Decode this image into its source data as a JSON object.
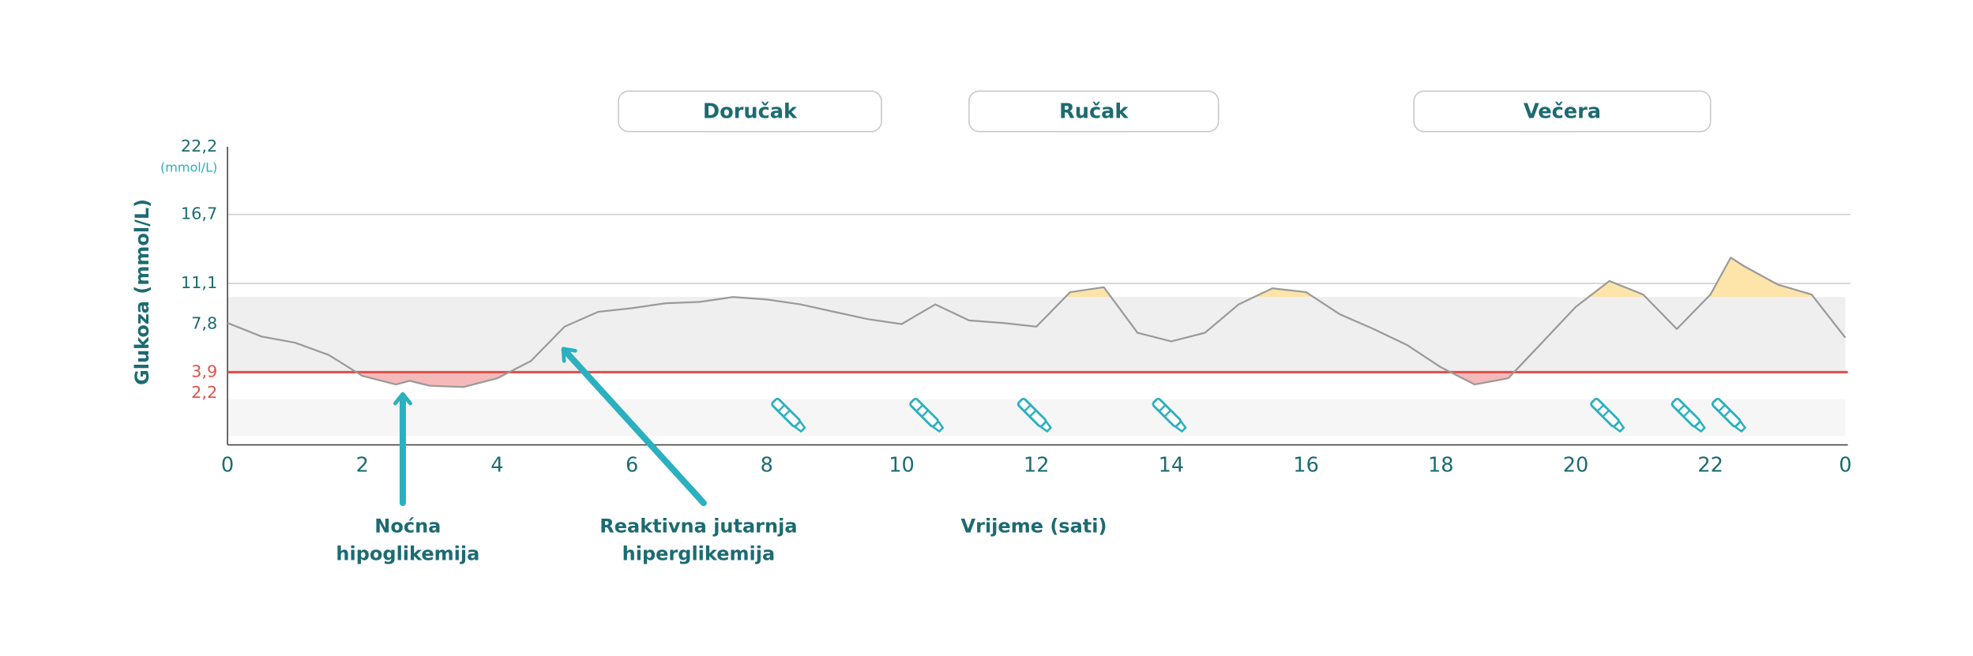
{
  "chart_data": {
    "type": "line",
    "y_label": "Glukoza (mmol/L)",
    "y_unit": "(mmol/L)",
    "x_label": "Vrijeme (sati)",
    "xlim": [
      0,
      24
    ],
    "xticks": [
      0,
      2,
      4,
      6,
      8,
      10,
      12,
      14,
      16,
      18,
      20,
      22,
      {
        "value": 24,
        "label": "0"
      }
    ],
    "ylim": [
      -2,
      22.2
    ],
    "yticks": [
      {
        "value": 22.2,
        "label": "22,2"
      },
      {
        "value": 16.7,
        "label": "16,7"
      },
      {
        "value": 11.1,
        "label": "11,1"
      },
      {
        "value": 7.8,
        "label": "7,8"
      },
      {
        "value": 3.9,
        "label": "3,9"
      },
      {
        "value": 2.2,
        "label": "2,2"
      }
    ],
    "grid_lines": [
      16.7,
      11.1
    ],
    "target_range": [
      3.9,
      10
    ],
    "colors": {
      "line": "#9a9a9a",
      "target_band": "#efefef",
      "low": "#e0524f",
      "low_fill": "#f6b9b9",
      "high_fill": "#fde4a9",
      "text": "#1d6b72",
      "accent": "#2bb0c0"
    },
    "x": [
      0,
      0.5,
      1,
      1.5,
      2,
      2.5,
      2.7,
      3,
      3.5,
      4,
      4.5,
      5,
      5.5,
      6,
      6.5,
      7,
      7.5,
      8,
      8.5,
      9,
      9.5,
      10,
      10.5,
      11,
      11.5,
      12,
      12.5,
      13,
      13.5,
      14,
      14.5,
      15,
      15.5,
      16,
      16.5,
      17,
      17.5,
      18,
      18.5,
      19,
      19.5,
      20,
      20.5,
      21,
      21.5,
      22,
      22.3,
      22.5,
      23,
      23.5,
      24
    ],
    "series": [
      {
        "values": [
          7.9,
          6.8,
          6.3,
          5.3,
          3.6,
          2.9,
          3.2,
          2.8,
          2.7,
          3.4,
          4.8,
          7.6,
          8.8,
          9.1,
          9.5,
          9.6,
          10,
          9.8,
          9.4,
          8.8,
          8.2,
          7.8,
          9.4,
          8.1,
          7.9,
          7.6,
          10.4,
          10.8,
          7.1,
          6.4,
          7.1,
          9.4,
          10.7,
          10.4,
          8.6,
          7.4,
          6.1,
          4.3,
          2.9,
          3.4,
          6.3,
          9.2,
          11.3,
          10.2,
          7.4,
          10.2,
          13.2,
          12.5,
          11,
          10.2,
          6.7
        ]
      }
    ],
    "meals": [
      {
        "label": "Doručak",
        "start": 5.8,
        "end": 9.7
      },
      {
        "label": "Ručak",
        "start": 11,
        "end": 14.7
      },
      {
        "label": "Večera",
        "start": 17.6,
        "end": 22
      }
    ],
    "injections": [
      8.35,
      10.4,
      12,
      14,
      20.5,
      21.7,
      22.3
    ],
    "annotations": [
      {
        "lines": [
          "Noćna",
          "hipoglikemija"
        ],
        "x": 2.6,
        "y": 2.8
      },
      {
        "lines": [
          "Reaktivna jutarnja",
          "hiperglikemija"
        ],
        "x": 5,
        "y": 6.5
      }
    ]
  }
}
